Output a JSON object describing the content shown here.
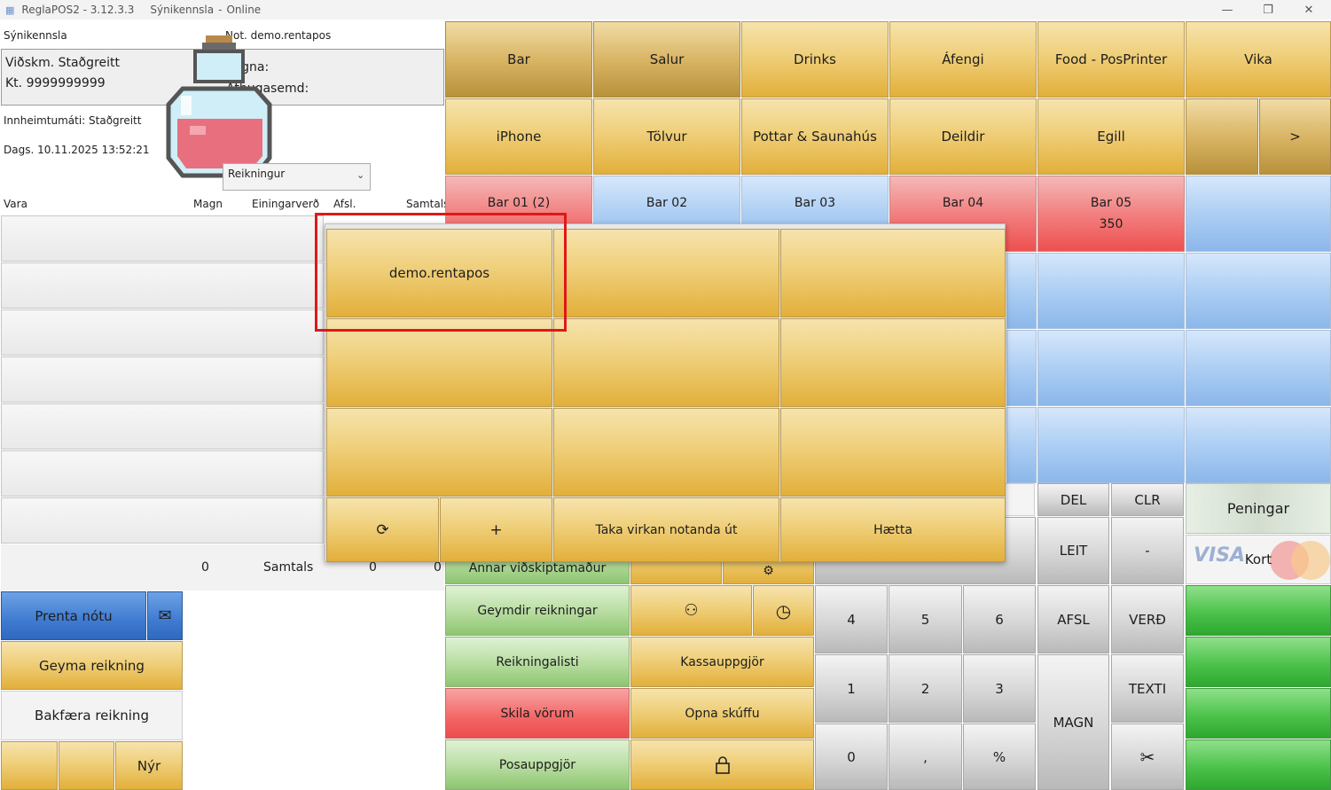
{
  "window": {
    "title": "ReglaPOS2 - 3.12.3.3",
    "company": "Sýnikennsla",
    "status": "Online",
    "controls": {
      "minimize": "—",
      "maximize": "❐",
      "close": "✕"
    }
  },
  "invoice": {
    "company": "Sýnikennsla",
    "user": "Not. demo.rentapos",
    "customer": "Viðskm. Staðgreitt",
    "kt": "Kt. 9999999999",
    "vegna_label": "Vegna:",
    "athugasemd_label": "Athugasemd:",
    "innheimtumati": "Innheimtumáti: Staðgreitt",
    "date": "Dags. 10.11.2025 13:52:21",
    "type_select": "Reikningur"
  },
  "table": {
    "headers": {
      "vara": "Vara",
      "magn": "Magn",
      "einingarverd": "Einingarverð",
      "afsl": "Afsl.",
      "samtals": "Samtals"
    },
    "footer": {
      "qty": "0",
      "label": "Samtals",
      "v1": "0",
      "v2": "0"
    }
  },
  "left_buttons": {
    "prenta": "Prenta nótu",
    "geyma": "Geyma reikning",
    "bakfaera": "Bakfæra reikning",
    "nyr": "Nýr"
  },
  "categories_row1": [
    "Bar",
    "Salur",
    "Drinks",
    "Áfengi",
    "Food - PosPrinter",
    "Vika"
  ],
  "categories_row2": [
    "iPhone",
    "Tölvur",
    "Pottar & Saunahús",
    "Deildir",
    "Egill",
    "",
    ">"
  ],
  "tables_row": [
    {
      "name": "Bar 01 (2)",
      "amount": ""
    },
    {
      "name": "Bar 02",
      "amount": ""
    },
    {
      "name": "Bar 03",
      "amount": ""
    },
    {
      "name": "Bar 04",
      "amount": ""
    },
    {
      "name": "Bar 05",
      "amount": "350"
    }
  ],
  "function_buttons": {
    "annar": "Annar viðskiptamaður",
    "geymdir": "Geymdir reikningar",
    "reikningalisti": "Reikningalisti",
    "kassauppgjor": "Kassauppgjör",
    "skila": "Skila vörum",
    "opna": "Opna skúffu",
    "posauppgjor": "Posauppgjör"
  },
  "keypad": {
    "del": "DEL",
    "clr": "CLR",
    "leit": "LEIT",
    "minus": "-",
    "n4": "4",
    "n5": "5",
    "n6": "6",
    "afsl": "AFSL",
    "verd": "VERÐ",
    "n1": "1",
    "n2": "2",
    "n3": "3",
    "texti": "TEXTI",
    "magn": "MAGN",
    "n0": "0",
    "comma": ",",
    "percent": "%"
  },
  "payment": {
    "peningar": "Peningar",
    "kort": "Kort"
  },
  "popup": {
    "users": [
      "demo.rentapos",
      "",
      "",
      "",
      "",
      "",
      "",
      "",
      ""
    ],
    "refresh": "⟳",
    "add": "+",
    "logout": "Taka virkan notanda út",
    "cancel": "Hætta"
  },
  "colors": {
    "highlight": "#e01818",
    "accent_gold": "#e2af3a"
  }
}
